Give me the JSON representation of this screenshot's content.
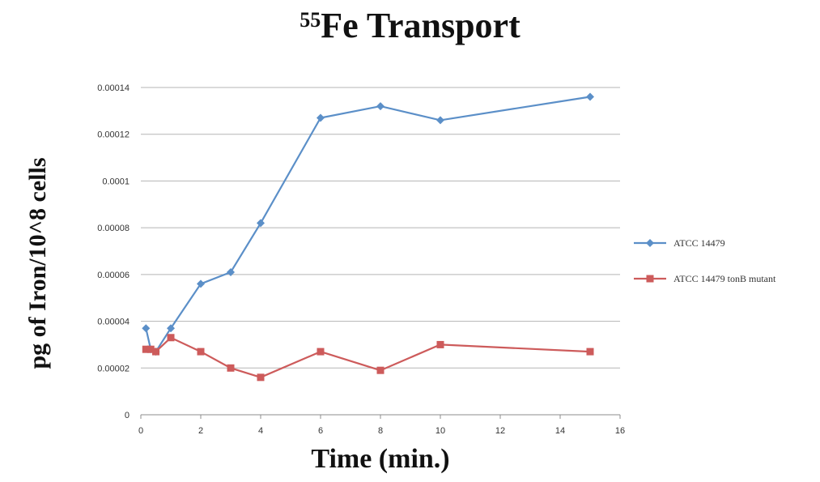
{
  "chart_data": {
    "type": "line",
    "title_prefix_sup": "55",
    "title_main": "Fe Transport",
    "xlabel": "Time (min.)",
    "ylabel": "pg of Iron/10^8 cells",
    "xlim": [
      0,
      16
    ],
    "ylim": [
      0,
      0.00014
    ],
    "x_ticks": [
      0,
      2,
      4,
      6,
      8,
      10,
      12,
      14,
      16
    ],
    "x_tick_labels": [
      "0",
      "2",
      "4",
      "6",
      "8",
      "10",
      "12",
      "14",
      "16"
    ],
    "y_ticks": [
      0,
      2e-05,
      4e-05,
      6e-05,
      8e-05,
      0.0001,
      0.00012,
      0.00014
    ],
    "y_tick_labels": [
      "0",
      "0.00002",
      "0.00004",
      "0.00006",
      "0.00008",
      "0.0001",
      "0.00012",
      "0.00014"
    ],
    "grid": "horizontal",
    "legend_position": "right",
    "series": [
      {
        "name": "ATCC 14479",
        "color": "#5b8fc8",
        "marker": "diamond",
        "x": [
          0.17,
          0.33,
          0.5,
          1,
          2,
          3,
          4,
          6,
          8,
          10,
          15
        ],
        "y": [
          3.7e-05,
          2.8e-05,
          2.7e-05,
          3.7e-05,
          5.6e-05,
          6.1e-05,
          8.2e-05,
          0.000127,
          0.000132,
          0.000126,
          0.000136
        ]
      },
      {
        "name": "ATCC 14479 tonB mutant",
        "color": "#cd5b5b",
        "marker": "square",
        "x": [
          0.17,
          0.33,
          0.5,
          1,
          2,
          3,
          4,
          6,
          8,
          10,
          15
        ],
        "y": [
          2.8e-05,
          2.8e-05,
          2.7e-05,
          3.3e-05,
          2.7e-05,
          2e-05,
          1.6e-05,
          2.7e-05,
          1.9e-05,
          3e-05,
          2.7e-05
        ]
      }
    ]
  }
}
